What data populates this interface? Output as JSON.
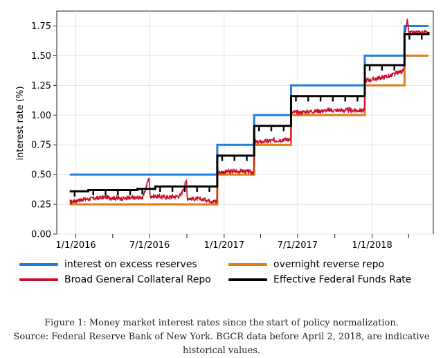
{
  "chart_data": {
    "type": "line",
    "xlabel": "",
    "ylabel": "interest rate (%)",
    "ylim": [
      0,
      1.875
    ],
    "xlim": [
      "2015-11-15",
      "2018-06-01"
    ],
    "x_ticks": [
      {
        "date": "2016-01-01",
        "label": "1/1/2016"
      },
      {
        "date": "2016-07-01",
        "label": "7/1/2016"
      },
      {
        "date": "2017-01-01",
        "label": "1/1/2017"
      },
      {
        "date": "2017-07-01",
        "label": "7/1/2017"
      },
      {
        "date": "2018-01-01",
        "label": "1/1/2018"
      }
    ],
    "x_minor_ticks": [
      "2016-04-01",
      "2016-10-01",
      "2017-04-01",
      "2017-10-01",
      "2018-04-01"
    ],
    "y_ticks": [
      {
        "value": 0,
        "label": "0.00"
      },
      {
        "value": 0.25,
        "label": "0.25"
      },
      {
        "value": 0.5,
        "label": "0.50"
      },
      {
        "value": 0.75,
        "label": "0.75"
      },
      {
        "value": 1.0,
        "label": "1.00"
      },
      {
        "value": 1.25,
        "label": "1.25"
      },
      {
        "value": 1.5,
        "label": "1.50"
      },
      {
        "value": 1.75,
        "label": "1.75"
      }
    ],
    "grid": true,
    "legend_position": "bottom",
    "series": [
      {
        "name": "interest on excess reserves",
        "color": "#1f7fe0",
        "style": "step",
        "points": [
          [
            "2015-12-17",
            0.5
          ],
          [
            "2016-12-15",
            0.75
          ],
          [
            "2017-03-16",
            1.0
          ],
          [
            "2017-06-15",
            1.25
          ],
          [
            "2017-12-14",
            1.5
          ],
          [
            "2018-03-22",
            1.75
          ],
          [
            "2018-05-20",
            1.75
          ]
        ]
      },
      {
        "name": "overnight reverse repo",
        "color": "#e07b16",
        "style": "step",
        "points": [
          [
            "2015-12-17",
            0.25
          ],
          [
            "2016-12-15",
            0.5
          ],
          [
            "2017-03-16",
            0.75
          ],
          [
            "2017-06-15",
            1.0
          ],
          [
            "2017-12-14",
            1.25
          ],
          [
            "2018-03-22",
            1.5
          ],
          [
            "2018-05-20",
            1.5
          ]
        ]
      },
      {
        "name": "Broad General Collateral Repo",
        "color": "#c8102e",
        "style": "noisy",
        "points": [
          [
            "2015-12-17",
            0.27
          ],
          [
            "2016-01-15",
            0.29
          ],
          [
            "2016-02-15",
            0.3
          ],
          [
            "2016-03-15",
            0.31
          ],
          [
            "2016-04-15",
            0.3
          ],
          [
            "2016-05-15",
            0.3
          ],
          [
            "2016-06-15",
            0.31
          ],
          [
            "2016-06-30",
            0.48
          ],
          [
            "2016-07-02",
            0.32
          ],
          [
            "2016-08-15",
            0.31
          ],
          [
            "2016-09-15",
            0.32
          ],
          [
            "2016-09-30",
            0.45
          ],
          [
            "2016-10-02",
            0.3
          ],
          [
            "2016-11-15",
            0.29
          ],
          [
            "2016-12-14",
            0.27
          ],
          [
            "2016-12-16",
            0.52
          ],
          [
            "2017-02-15",
            0.53
          ],
          [
            "2017-03-15",
            0.52
          ],
          [
            "2017-03-17",
            0.77
          ],
          [
            "2017-05-15",
            0.79
          ],
          [
            "2017-06-14",
            0.8
          ],
          [
            "2017-06-16",
            1.02
          ],
          [
            "2017-09-15",
            1.04
          ],
          [
            "2017-12-13",
            1.04
          ],
          [
            "2017-12-15",
            1.29
          ],
          [
            "2018-02-15",
            1.33
          ],
          [
            "2018-03-21",
            1.38
          ],
          [
            "2018-03-23",
            1.68
          ],
          [
            "2018-03-29",
            1.8
          ],
          [
            "2018-04-02",
            1.69
          ],
          [
            "2018-05-20",
            1.7
          ]
        ]
      },
      {
        "name": "Effective Federal Funds Rate",
        "color": "#000000",
        "style": "step",
        "points": [
          [
            "2015-12-17",
            0.36
          ],
          [
            "2016-02-01",
            0.37
          ],
          [
            "2016-06-01",
            0.38
          ],
          [
            "2016-07-15",
            0.4
          ],
          [
            "2016-12-15",
            0.66
          ],
          [
            "2017-03-16",
            0.91
          ],
          [
            "2017-06-15",
            1.16
          ],
          [
            "2017-12-14",
            1.42
          ],
          [
            "2018-03-22",
            1.68
          ],
          [
            "2018-05-20",
            1.7
          ]
        ]
      }
    ]
  },
  "caption": {
    "line1": "Figure 1: Money market interest rates since the start of policy normalization.",
    "line2": "Source: Federal Reserve Bank of New York. BGCR data before April 2, 2018, are indicative",
    "line3": "historical values."
  }
}
